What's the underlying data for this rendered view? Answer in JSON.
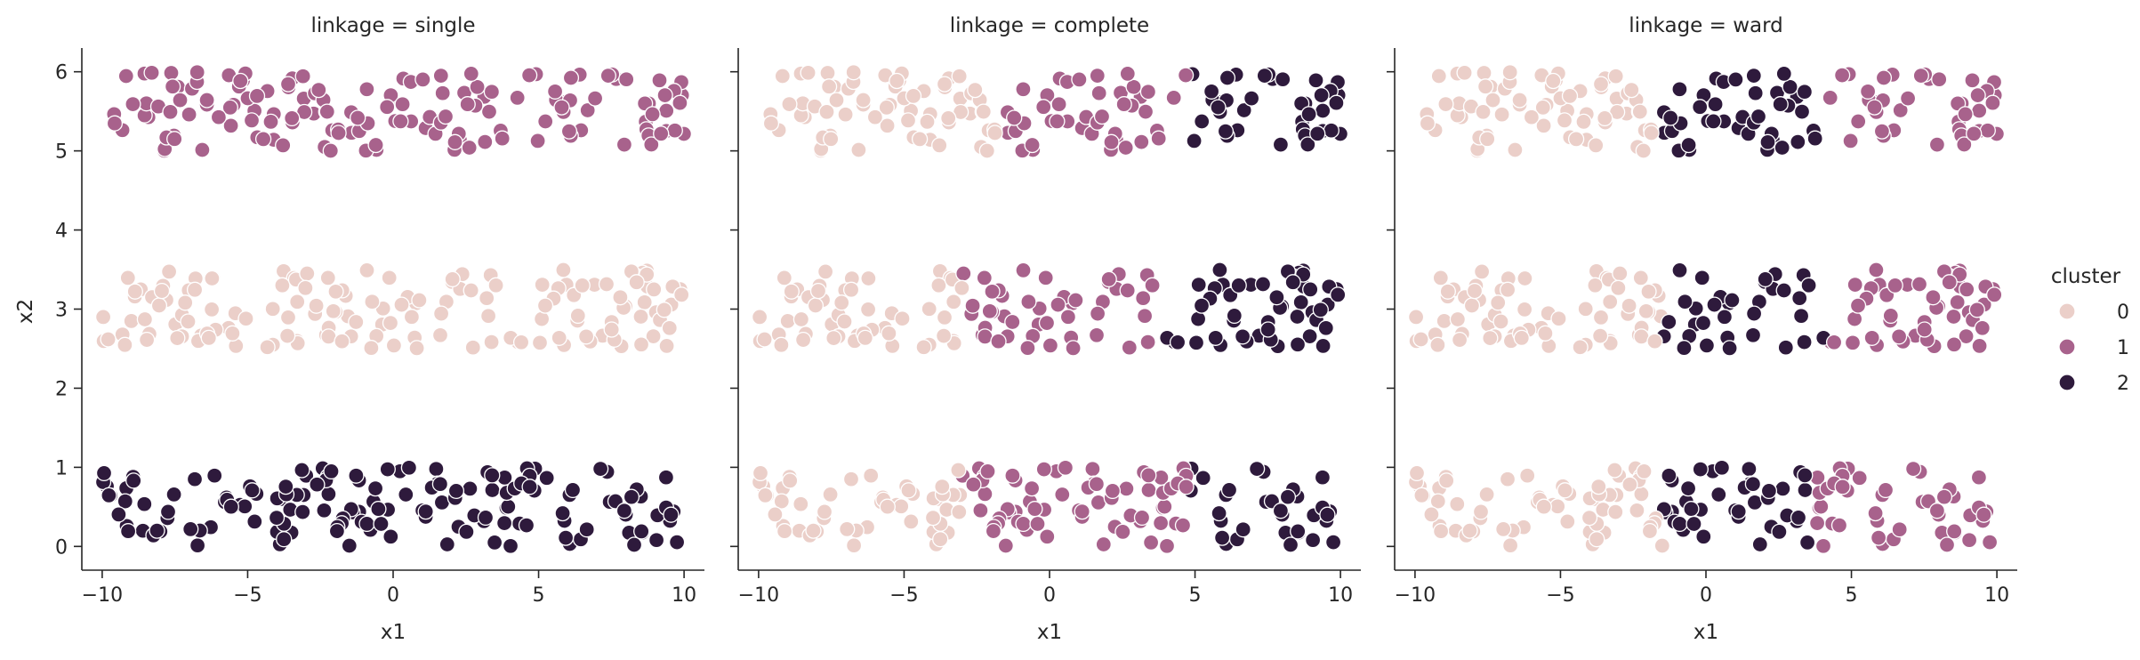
{
  "chart_data": {
    "type": "scatter",
    "xlabel": "x1",
    "ylabel": "x2",
    "xlim": [
      -10.7,
      10.7
    ],
    "ylim": [
      -0.3,
      6.3
    ],
    "xticks": [
      -10,
      -5,
      0,
      5,
      10
    ],
    "yticks": [
      0,
      1,
      2,
      3,
      4,
      5,
      6
    ],
    "legend": {
      "title": "cluster",
      "placement": "right",
      "entries": [
        {
          "label": "0",
          "color": "#ebcfc9"
        },
        {
          "label": "1",
          "color": "#a8628c"
        },
        {
          "label": "2",
          "color": "#2e1a3c"
        }
      ]
    },
    "bands": [
      {
        "y_min": 5.0,
        "y_max": 6.0
      },
      {
        "y_min": 2.5,
        "y_max": 3.5
      },
      {
        "y_min": 0.0,
        "y_max": 1.0
      }
    ],
    "x_range": [
      -10,
      10
    ],
    "points_per_band": 150,
    "facets": [
      {
        "title": "linkage = single",
        "assignment": [
          {
            "band": 0,
            "segments": [
              {
                "x_max": 10,
                "cluster": 1
              }
            ]
          },
          {
            "band": 1,
            "segments": [
              {
                "x_max": 10,
                "cluster": 0
              }
            ]
          },
          {
            "band": 2,
            "segments": [
              {
                "x_max": 10,
                "cluster": 2
              }
            ]
          }
        ]
      },
      {
        "title": "linkage = complete",
        "assignment": [
          {
            "band": 0,
            "segments": [
              {
                "x_max": -1.5,
                "cluster": 0
              },
              {
                "x_max": 4.8,
                "cluster": 1
              },
              {
                "x_max": 10,
                "cluster": 2
              }
            ]
          },
          {
            "band": 1,
            "segments": [
              {
                "x_max": -3.0,
                "cluster": 0
              },
              {
                "x_max": 4.0,
                "cluster": 1
              },
              {
                "x_max": 10,
                "cluster": 2
              }
            ]
          },
          {
            "band": 2,
            "segments": [
              {
                "x_max": -3.0,
                "cluster": 0
              },
              {
                "x_max": 4.8,
                "cluster": 1
              },
              {
                "x_max": 10,
                "cluster": 2
              }
            ]
          }
        ]
      },
      {
        "title": "linkage = ward",
        "assignment": [
          {
            "band": 0,
            "segments": [
              {
                "x_max": -1.5,
                "cluster": 0
              },
              {
                "x_max": 4.2,
                "cluster": 2
              },
              {
                "x_max": 10,
                "cluster": 1
              }
            ]
          },
          {
            "band": 1,
            "segments": [
              {
                "x_max": -1.5,
                "cluster": 0
              },
              {
                "x_max": 4.2,
                "cluster": 2
              },
              {
                "x_max": 10,
                "cluster": 1
              }
            ]
          },
          {
            "band": 2,
            "segments": [
              {
                "x_max": -1.5,
                "cluster": 0
              },
              {
                "x_max": 3.8,
                "cluster": 2
              },
              {
                "x_max": 10,
                "cluster": 1
              }
            ]
          }
        ]
      }
    ]
  }
}
